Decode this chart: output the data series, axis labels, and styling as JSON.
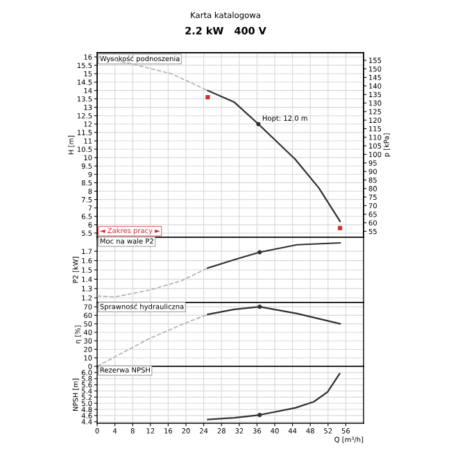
{
  "chart_data": [
    {
      "type": "line",
      "title": "Wysokość podnoszenia",
      "ylabel": "H [m]",
      "y2label": "p [kPa]",
      "annotations": [
        "Karta katalogowa",
        "2.2 kW   400 V",
        {
          "text": "Hopt: 12.0 m",
          "x": 36.3,
          "y": 12.0
        },
        "◄ Zakres pracy ►"
      ],
      "xlim": [
        0,
        60
      ],
      "xticks": [
        0,
        4,
        8,
        12,
        16,
        20,
        24,
        28,
        32,
        36,
        40,
        44,
        48,
        52,
        56
      ],
      "ylim": [
        5.25,
        16.25
      ],
      "yticks": [
        5.5,
        6,
        6.5,
        7,
        7.5,
        8,
        8.5,
        9,
        9.5,
        10,
        10.5,
        11,
        11.5,
        12,
        12.5,
        13,
        13.5,
        14,
        14.5,
        15,
        15.5,
        16
      ],
      "y2lim": [
        51.5,
        159.4
      ],
      "y2ticks": [
        55,
        60,
        65,
        70,
        75,
        80,
        85,
        90,
        95,
        100,
        105,
        110,
        115,
        120,
        125,
        130,
        135,
        140,
        145,
        150,
        155
      ],
      "grid": true,
      "tick_labels": "y",
      "series": [
        {
          "type": "line",
          "line_style": "dashed",
          "color": "#b0b0b0",
          "x": [
            0,
            7.6,
            16.7,
            24.9
          ],
          "values": [
            16.0,
            15.6,
            15.0,
            14.0
          ]
        },
        {
          "type": "line",
          "line_style": "solid",
          "color": "#303030",
          "x": [
            24.9,
            30.9,
            36.3,
            44.6,
            49.9,
            54.7
          ],
          "values": [
            14.0,
            13.3,
            12.0,
            9.9,
            8.2,
            6.2
          ]
        },
        {
          "type": "scatter",
          "marker": "circle",
          "color": "#303030",
          "x": [
            36.3
          ],
          "values": [
            12.0
          ]
        },
        {
          "type": "scatter",
          "marker": "square",
          "color": "#d03030",
          "x": [
            24.9,
            54.7
          ],
          "values": [
            13.6,
            5.8
          ]
        }
      ]
    },
    {
      "type": "line",
      "title": "Moc na wale P2",
      "ylabel": "P2 [kW]",
      "xlim": [
        0,
        60
      ],
      "xticks": [
        0,
        4,
        8,
        12,
        16,
        20,
        24,
        28,
        32,
        36,
        40,
        44,
        48,
        52,
        56
      ],
      "ylim": [
        1.15,
        1.85
      ],
      "yticks": [
        1.2,
        1.3,
        1.4,
        1.5,
        1.6,
        1.7
      ],
      "grid": true,
      "tick_labels": "y",
      "series": [
        {
          "type": "line",
          "line_style": "dashed",
          "color": "#b0b0b0",
          "x": [
            0,
            4,
            11.5,
            18.8,
            24.9
          ],
          "values": [
            1.22,
            1.21,
            1.28,
            1.38,
            1.52
          ]
        },
        {
          "type": "line",
          "line_style": "solid",
          "color": "#303030",
          "x": [
            24.9,
            30.9,
            36.6,
            45,
            54.7
          ],
          "values": [
            1.52,
            1.61,
            1.69,
            1.77,
            1.79
          ]
        },
        {
          "type": "scatter",
          "marker": "circle",
          "color": "#303030",
          "x": [
            36.6
          ],
          "values": [
            1.69
          ]
        }
      ]
    },
    {
      "type": "line",
      "title": "Sprawność hydrauliczna",
      "ylabel": "η [%]",
      "xlim": [
        0,
        60
      ],
      "xticks": [
        0,
        4,
        8,
        12,
        16,
        20,
        24,
        28,
        32,
        36,
        40,
        44,
        48,
        52,
        56
      ],
      "ylim": [
        0,
        75
      ],
      "yticks": [
        0,
        10,
        20,
        30,
        40,
        50,
        60,
        70
      ],
      "grid": true,
      "tick_labels": "y",
      "series": [
        {
          "type": "line",
          "line_style": "dashed",
          "color": "#b0b0b0",
          "x": [
            0,
            11.5,
            19.9,
            24.9
          ],
          "values": [
            0,
            32,
            51,
            61
          ]
        },
        {
          "type": "line",
          "line_style": "solid",
          "color": "#303030",
          "x": [
            24.9,
            30.9,
            36.6,
            45,
            54.7
          ],
          "values": [
            61,
            67,
            70,
            62,
            50
          ]
        },
        {
          "type": "scatter",
          "marker": "circle",
          "color": "#303030",
          "x": [
            36.6
          ],
          "values": [
            70
          ]
        }
      ]
    },
    {
      "type": "line",
      "title": "Rezerwa NPSH",
      "ylabel": "NPSH [m]",
      "xlabel": "Q [m³/h]",
      "xlim": [
        0,
        60
      ],
      "xticks": [
        0,
        4,
        8,
        12,
        16,
        20,
        24,
        28,
        32,
        36,
        40,
        44,
        48,
        52,
        56
      ],
      "ylim": [
        4.35,
        6.2
      ],
      "yticks": [
        4.4,
        4.6,
        4.8,
        {
          "value": 5,
          "label": "5.0"
        },
        5.2,
        5.4,
        5.6,
        5.8,
        {
          "value": 6,
          "label": "6.0"
        }
      ],
      "grid": true,
      "series": [
        {
          "type": "line",
          "line_style": "solid",
          "color": "#303030",
          "x": [
            24.9,
            30.9,
            36.6,
            44.6,
            48.8,
            51.9,
            54.6
          ],
          "values": [
            4.47,
            4.53,
            4.62,
            4.85,
            5.05,
            5.37,
            5.96
          ]
        },
        {
          "type": "scatter",
          "marker": "circle",
          "color": "#303030",
          "x": [
            36.6
          ],
          "values": [
            4.62
          ]
        }
      ]
    }
  ]
}
